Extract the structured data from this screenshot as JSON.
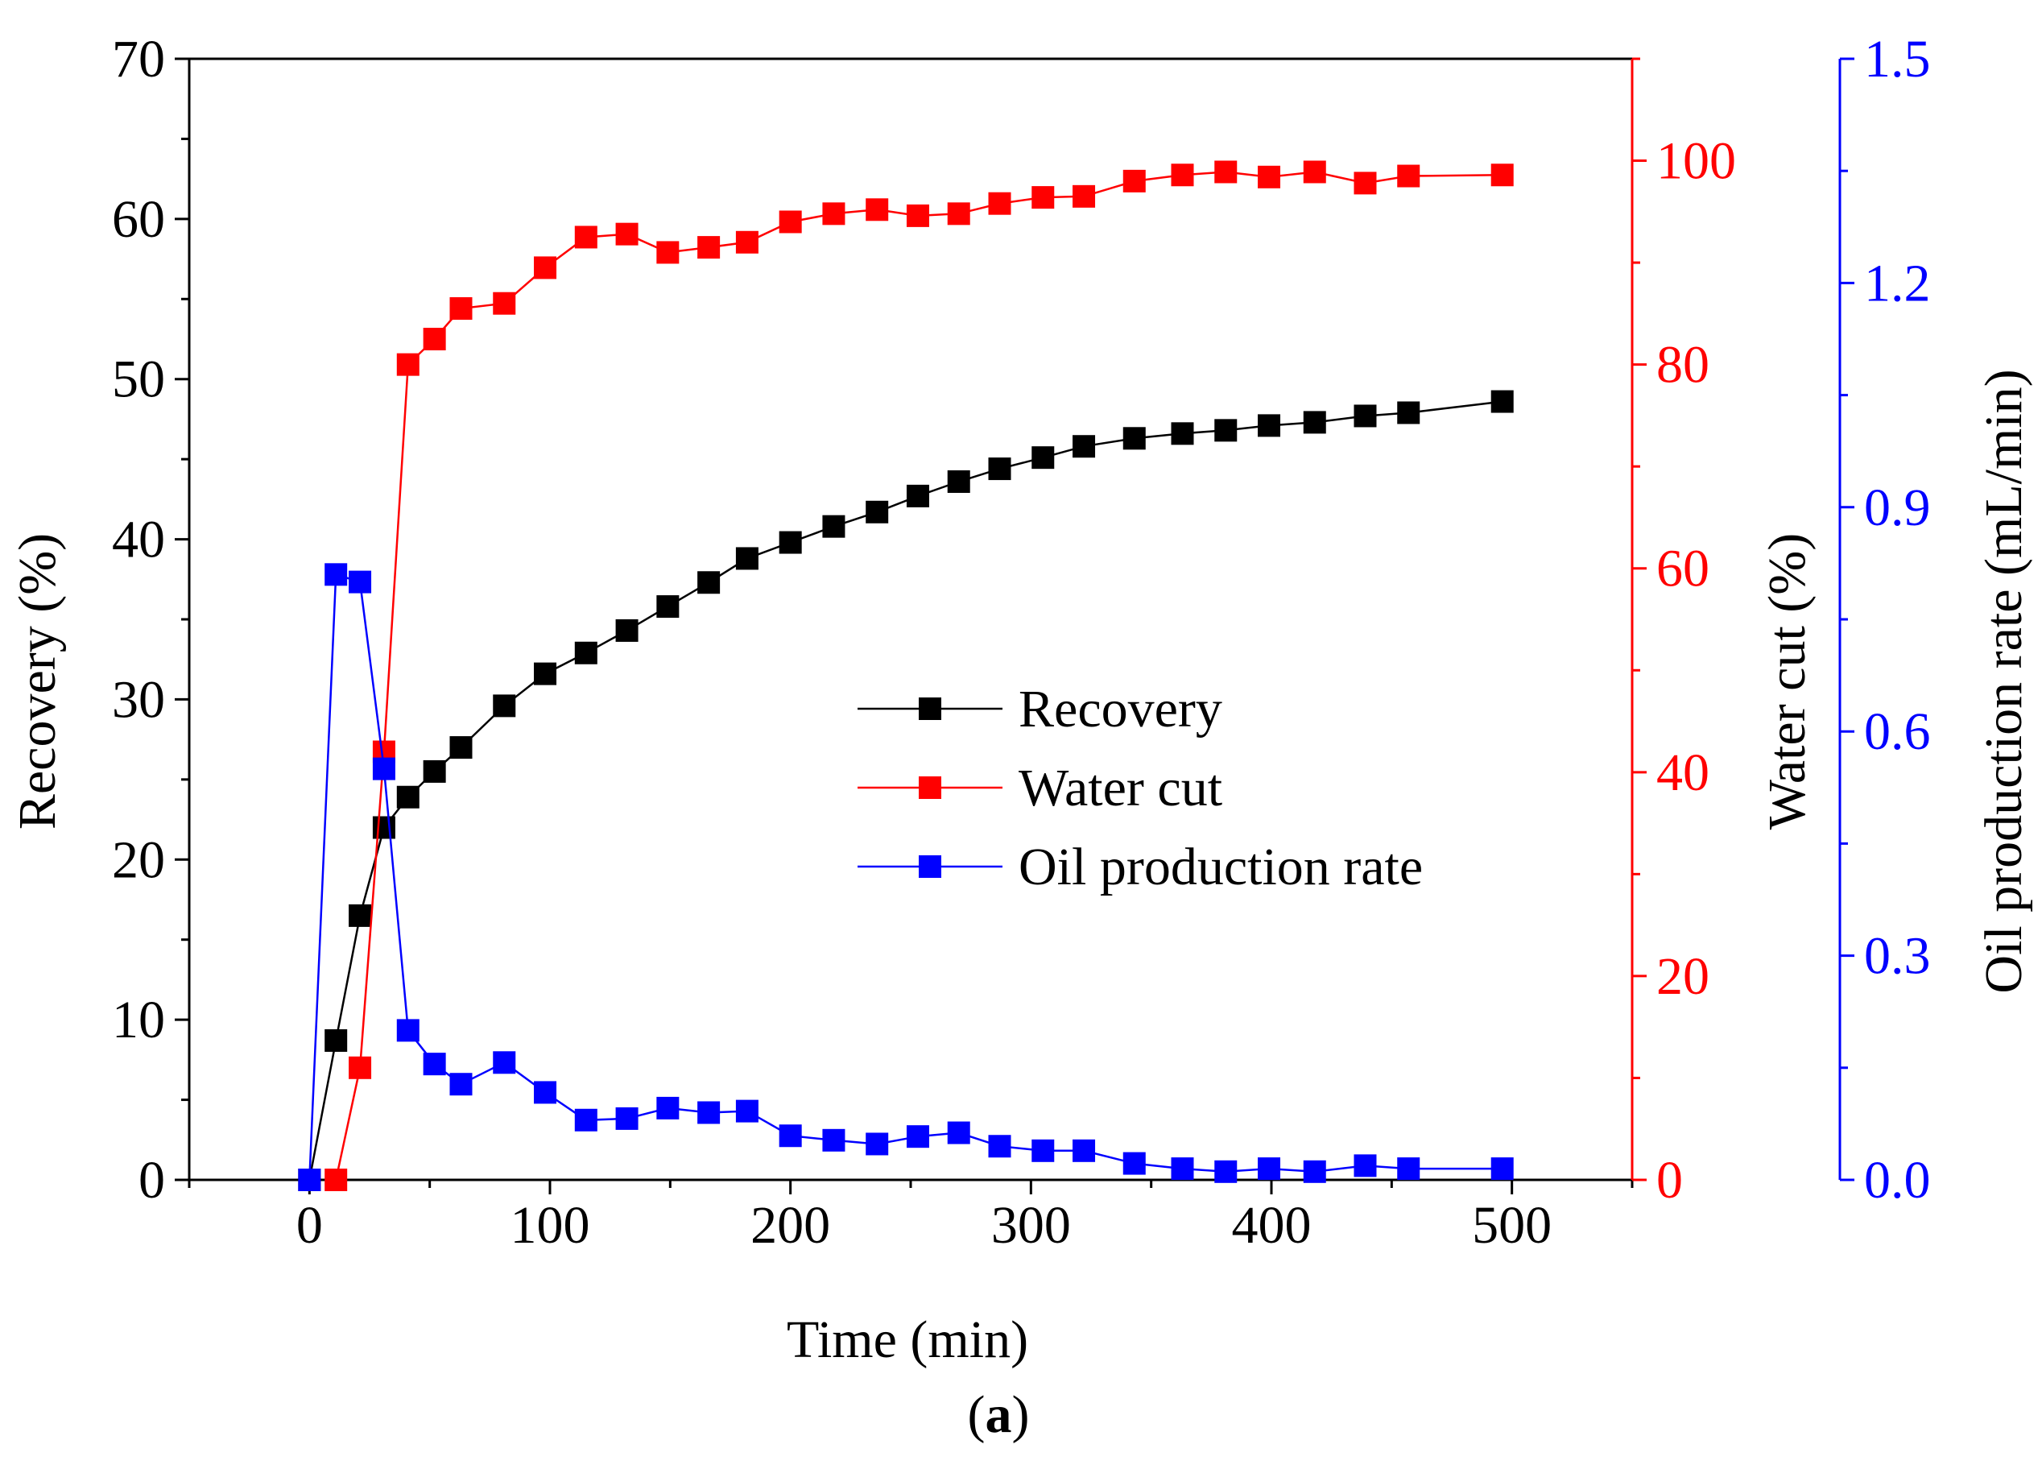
{
  "chart_data": {
    "type": "line",
    "caption": {
      "open": "(",
      "letter": "a",
      "close": ")"
    },
    "xlabel": "Time (min)",
    "xlim": [
      -50,
      550
    ],
    "xticks": [
      0,
      100,
      200,
      300,
      400,
      500
    ],
    "y_left": {
      "label": "Recovery (%)",
      "lim": [
        0,
        70
      ],
      "ticks": [
        0,
        10,
        20,
        30,
        40,
        50,
        60,
        70
      ],
      "color": "#000000"
    },
    "y_right1": {
      "label": "Water cut (%)",
      "lim": [
        0,
        110
      ],
      "ticks": [
        0,
        20,
        40,
        60,
        80,
        100
      ],
      "color": "#ff0000"
    },
    "y_right2": {
      "label": "Oil production rate (mL/min)",
      "lim": [
        0,
        1.5
      ],
      "ticks": [
        "0.0",
        "0.3",
        "0.6",
        "0.9",
        "1.2",
        "1.5"
      ],
      "color": "#0000ff"
    },
    "legend_position": "center",
    "series": [
      {
        "name": "Recovery",
        "axis": "left",
        "color": "#000000",
        "x": [
          0,
          11,
          21,
          31,
          41,
          52,
          63,
          81,
          98,
          115,
          132,
          149,
          166,
          182,
          200,
          218,
          236,
          253,
          270,
          287,
          305,
          322,
          343,
          363,
          381,
          399,
          418,
          439,
          457,
          496
        ],
        "y": [
          0,
          8.7,
          16.5,
          22.0,
          23.9,
          25.5,
          27.0,
          29.6,
          31.6,
          32.9,
          34.3,
          35.8,
          37.3,
          38.8,
          39.8,
          40.8,
          41.7,
          42.7,
          43.6,
          44.4,
          45.1,
          45.8,
          46.3,
          46.6,
          46.8,
          47.1,
          47.3,
          47.7,
          47.9,
          48.6
        ]
      },
      {
        "name": "Water cut",
        "axis": "right1",
        "color": "#ff0000",
        "x": [
          11,
          21,
          31,
          41,
          52,
          63,
          81,
          98,
          115,
          132,
          149,
          166,
          182,
          200,
          218,
          236,
          253,
          270,
          287,
          305,
          322,
          343,
          363,
          381,
          399,
          418,
          439,
          457,
          496
        ],
        "y": [
          0,
          11,
          42,
          80,
          82.5,
          85.5,
          86,
          89.5,
          92.5,
          92.8,
          91,
          91.5,
          92,
          94,
          94.8,
          95.2,
          94.6,
          94.8,
          95.8,
          96.4,
          96.5,
          98.0,
          98.6,
          98.9,
          98.4,
          98.9,
          97.8,
          98.5,
          98.6
        ]
      },
      {
        "name": "Oil production rate",
        "axis": "right2",
        "color": "#0000ff",
        "x": [
          0,
          11,
          21,
          31,
          41,
          52,
          63,
          81,
          98,
          115,
          132,
          149,
          166,
          182,
          200,
          218,
          236,
          253,
          270,
          287,
          305,
          322,
          343,
          363,
          381,
          399,
          418,
          439,
          457,
          496
        ],
        "y": [
          0,
          0.81,
          0.8,
          0.55,
          0.2,
          0.155,
          0.128,
          0.157,
          0.117,
          0.08,
          0.082,
          0.096,
          0.09,
          0.092,
          0.059,
          0.053,
          0.048,
          0.058,
          0.063,
          0.045,
          0.039,
          0.039,
          0.022,
          0.015,
          0.011,
          0.015,
          0.011,
          0.019,
          0.015,
          0.015
        ]
      }
    ]
  }
}
